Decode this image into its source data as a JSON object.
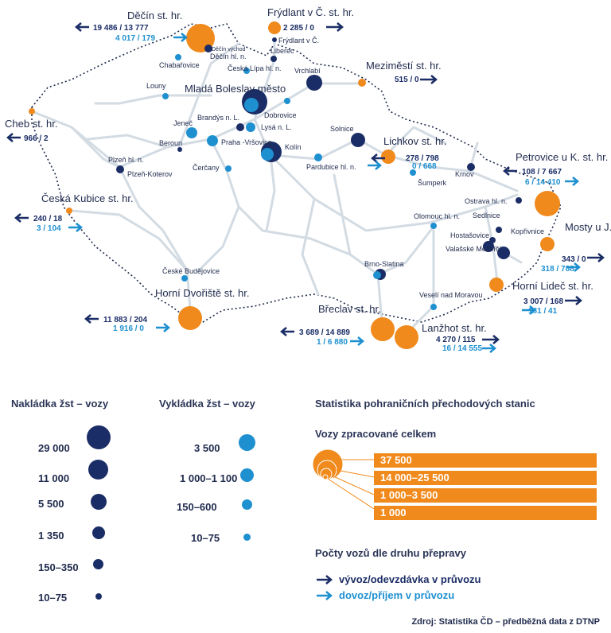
{
  "colors": {
    "navy": "#1b2d66",
    "blue": "#1e90d0",
    "orange": "#f08a1c",
    "rail": "#d3dbe3"
  },
  "map_labels": {
    "decin_sthr": "Děčín st. hr.",
    "decin_out": "19 486 / 13 777",
    "decin_in": "4 017 / 179",
    "frydlant_sthr": "Frýdlant v Č. st. hr.",
    "frydlant_out": "2 285 / 0",
    "frydlant": "Frýdlant v Č.",
    "decin_vychod": "Děčín východ",
    "decin_hl": "Děčín hl. n.",
    "liberec": "Liberec",
    "chabarovice": "Chabařovice",
    "ceska_lipa": "Česká Lípa hl. n.",
    "vrchlabi": "Vrchlabí",
    "mezimesti_sthr": "Meziměstí st. hr.",
    "mezimesti_out": "515 / 0",
    "louny": "Louny",
    "mlada_boleslav": "Mladá Boleslav město",
    "dobrovice": "Dobrovice",
    "cheb_sthr": "Cheb st. hr.",
    "cheb_out": "966 / 2",
    "jenec": "Jeneč",
    "brandys": "Brandýs n. L.",
    "lysa": "Lysá n. L.",
    "solnice": "Solnice",
    "beroun": "Beroun",
    "praha": "Praha -Vršovice",
    "kolin": "Kolín",
    "lichkov_sthr": "Lichkov st. hr.",
    "lichkov_out": "278 / 798",
    "lichkov_in": "0 / 668",
    "petrovice_sthr": "Petrovice u K. st. hr.",
    "petrovice_out": "108 / 7 667",
    "petrovice_in": "6 / 14 410",
    "plzen_hl": "Plzeň hl. n.",
    "plzen_koterov": "Plzeň-Koterov",
    "cercany": "Čerčany",
    "pardubice": "Pardubice hl. n.",
    "krnov": "Krnov",
    "sumperk": "Šumperk",
    "ostrava": "Ostrava hl. n.",
    "kubice_sthr": "Česká Kubice st. hr.",
    "kubice_out": "240 / 18",
    "kubice_in": "3 / 104",
    "olomouc": "Olomouc hl. n.",
    "sedlnice": "Sedlnice",
    "koprivnice": "Kopřivnice",
    "mosty_sthr": "Mosty u J. st. hr.",
    "mosty_out": "343 / 0",
    "mosty_in": "318 / 788",
    "hostasovice": "Hostašovice",
    "valasske": "Valašské Meziříčí",
    "ceske_budejovice": "České Budějovice",
    "brno": "Brno-Slatina",
    "horni_dvoriste_sthr": "Horní Dvořiště st. hr.",
    "hd_out": "11 883 / 204",
    "hd_in": "1 916 / 0",
    "horni_lidec_sthr": "Horní Lideč st. hr.",
    "hl_out": "3 007 / 168",
    "hl_in": "181 / 41",
    "veseli": "Veselí nad Moravou",
    "breclav_sthr": "Břeclav st. hr.",
    "breclav_out": "3 689 / 14 889",
    "breclav_in": "1 / 6 880",
    "lanzhot_sthr": "Lanžhot st. hr.",
    "lanzhot_out": "4 270 / 115",
    "lanzhot_in": "16 / 14 555"
  },
  "legend": {
    "loading_title": "Nakládka žst – vozy",
    "loading_items": [
      "29 000",
      "11 000",
      "5 500",
      "1 350",
      "150–350",
      "10–75"
    ],
    "unloading_title": "Vykládka žst – vozy",
    "unloading_items": [
      "3 500",
      "1 000–1 100",
      "150–600",
      "10–75"
    ],
    "border_title": "Statistika pohraničních přechodových stanic",
    "total_title": "Vozy zpracované celkem",
    "total_items": [
      "37 500",
      "14 000–25 500",
      "1 000–3 500",
      "1 000"
    ],
    "transport_title": "Počty vozů dle druhu přepravy",
    "export_label": "vývoz/odevzdávka v průvozu",
    "import_label": "dovoz/příjem v průvozu"
  },
  "source": "Zdroj: Statistika ČD – předběžná data z DTNP"
}
